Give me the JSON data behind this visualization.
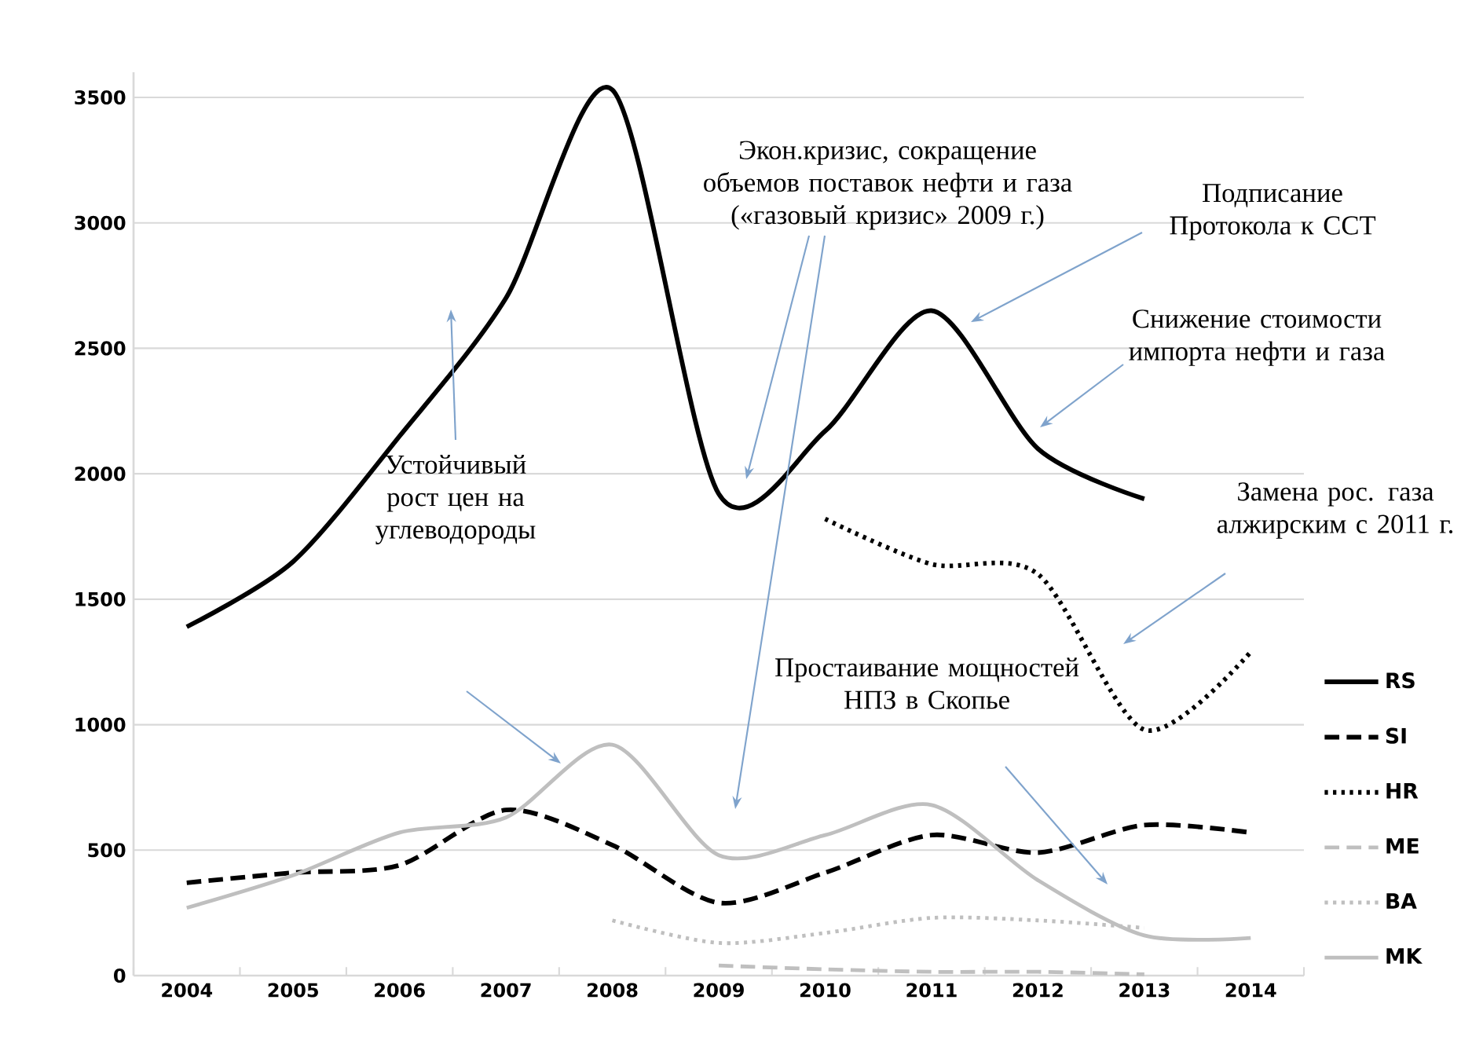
{
  "chart_data": {
    "type": "line",
    "categories": [
      "2004",
      "2005",
      "2006",
      "2007",
      "2008",
      "2009",
      "2010",
      "2011",
      "2012",
      "2013",
      "2014"
    ],
    "series": [
      {
        "name": "RS",
        "color": "#000000",
        "line_style": "solid",
        "values": [
          1390,
          1650,
          2150,
          2700,
          3530,
          1920,
          2170,
          2650,
          2100,
          1900,
          null
        ]
      },
      {
        "name": "SI",
        "color": "#000000",
        "line_style": "dashed",
        "values": [
          370,
          410,
          440,
          660,
          520,
          290,
          410,
          560,
          490,
          600,
          570
        ]
      },
      {
        "name": "HR",
        "color": "#000000",
        "line_style": "dotted",
        "values": [
          null,
          null,
          null,
          null,
          null,
          null,
          1820,
          1640,
          1600,
          980,
          1290
        ]
      },
      {
        "name": "ME",
        "color": "#bfbfbf",
        "line_style": "dashed",
        "values": [
          null,
          null,
          null,
          null,
          null,
          40,
          25,
          15,
          15,
          5,
          null
        ]
      },
      {
        "name": "BA",
        "color": "#bfbfbf",
        "line_style": "dotted",
        "values": [
          null,
          null,
          null,
          null,
          220,
          130,
          170,
          230,
          220,
          190,
          null
        ]
      },
      {
        "name": "MK",
        "color": "#bfbfbf",
        "line_style": "solid",
        "values": [
          270,
          400,
          570,
          630,
          920,
          480,
          560,
          680,
          380,
          160,
          150
        ]
      }
    ],
    "ylim": [
      0,
      3600
    ],
    "yticks": [
      0,
      500,
      1000,
      1500,
      2000,
      2500,
      3000,
      3500
    ],
    "grid": "y",
    "legend": "right",
    "marker": "none",
    "annotations": [
      "Экон.кризис, сокращение объемов поставок нефти и газа («газовый кризис» 2009 г.)",
      "Подписание Протокола к ССТ",
      "Снижение стоимости импорта нефти и газа",
      "Замена рос. газа алжирским с 2011 г.",
      "Устойчивый рост цен на углеводороды",
      "Простаивание мощностей НПЗ в Скопье"
    ]
  }
}
